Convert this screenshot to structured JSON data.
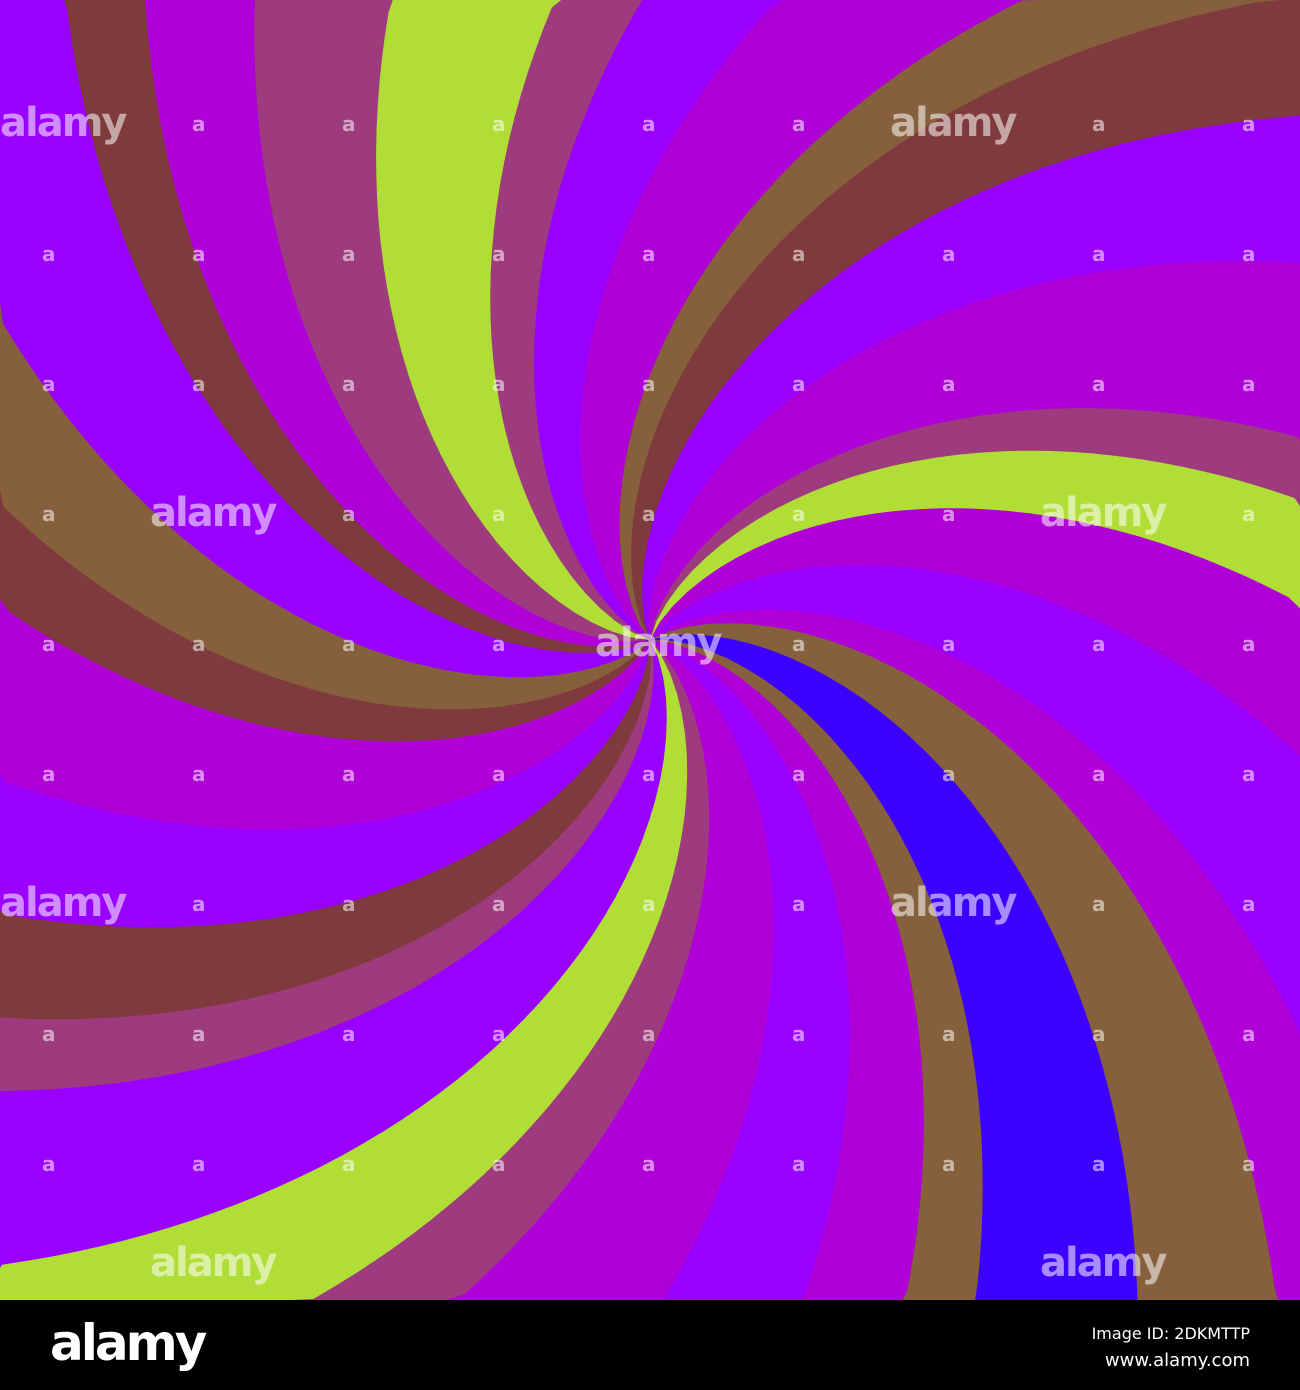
{
  "artwork": {
    "description_colors": [
      "#9e3a7e",
      "#b0de36",
      "#9a00ff",
      "#b000d8",
      "#86603c",
      "#3c00ff",
      "#7e3a3c"
    ],
    "watermark_text": "alamy",
    "watermark_mark": "a"
  },
  "footer": {
    "logo": "alamy",
    "image_id": "Image ID: 2DKMTTP",
    "url": "www.alamy.com"
  }
}
